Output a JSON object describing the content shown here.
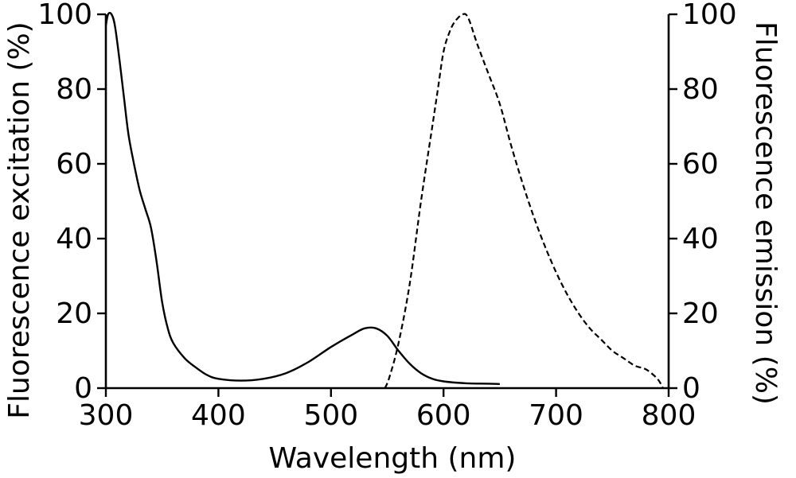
{
  "chart_data": {
    "type": "line",
    "xlabel": "Wavelength (nm)",
    "ylabel_left": "Fluorescence excitation (%)",
    "ylabel_right": "Fluorescence emission (%)",
    "xlim": [
      300,
      800
    ],
    "ylim": [
      0,
      100
    ],
    "x_ticks": [
      "300",
      "400",
      "500",
      "600",
      "700",
      "800"
    ],
    "y_ticks": [
      "0",
      "20",
      "40",
      "60",
      "80",
      "100"
    ],
    "grid": false,
    "series": [
      {
        "name": "Excitation",
        "axis": "left",
        "style": "solid",
        "points": [
          [
            300,
            97
          ],
          [
            302,
            100
          ],
          [
            305,
            100
          ],
          [
            308,
            97
          ],
          [
            312,
            88
          ],
          [
            316,
            78
          ],
          [
            320,
            68
          ],
          [
            325,
            60
          ],
          [
            330,
            53
          ],
          [
            335,
            48
          ],
          [
            340,
            43
          ],
          [
            345,
            34
          ],
          [
            350,
            23
          ],
          [
            355,
            16
          ],
          [
            360,
            12
          ],
          [
            370,
            8
          ],
          [
            380,
            5.5
          ],
          [
            390,
            3.5
          ],
          [
            400,
            2.5
          ],
          [
            420,
            2
          ],
          [
            440,
            2.5
          ],
          [
            460,
            4
          ],
          [
            480,
            7
          ],
          [
            500,
            11
          ],
          [
            520,
            14.5
          ],
          [
            530,
            16
          ],
          [
            540,
            16
          ],
          [
            550,
            14
          ],
          [
            560,
            10
          ],
          [
            570,
            6.5
          ],
          [
            580,
            4
          ],
          [
            590,
            2.5
          ],
          [
            600,
            1.8
          ],
          [
            620,
            1.3
          ],
          [
            640,
            1.2
          ],
          [
            650,
            1.1
          ]
        ]
      },
      {
        "name": "Emission",
        "axis": "right",
        "style": "dashed",
        "points": [
          [
            548,
            0
          ],
          [
            552,
            3
          ],
          [
            560,
            12
          ],
          [
            570,
            28
          ],
          [
            580,
            50
          ],
          [
            590,
            70
          ],
          [
            595,
            80
          ],
          [
            600,
            90
          ],
          [
            605,
            95
          ],
          [
            610,
            98
          ],
          [
            617,
            100
          ],
          [
            622,
            99
          ],
          [
            630,
            92
          ],
          [
            640,
            84
          ],
          [
            650,
            76
          ],
          [
            660,
            65
          ],
          [
            670,
            55
          ],
          [
            680,
            46
          ],
          [
            690,
            38
          ],
          [
            700,
            31
          ],
          [
            710,
            25
          ],
          [
            720,
            20
          ],
          [
            730,
            16
          ],
          [
            740,
            13
          ],
          [
            750,
            10
          ],
          [
            760,
            8
          ],
          [
            770,
            6
          ],
          [
            780,
            5
          ],
          [
            790,
            2.5
          ],
          [
            795,
            0
          ]
        ]
      }
    ]
  }
}
